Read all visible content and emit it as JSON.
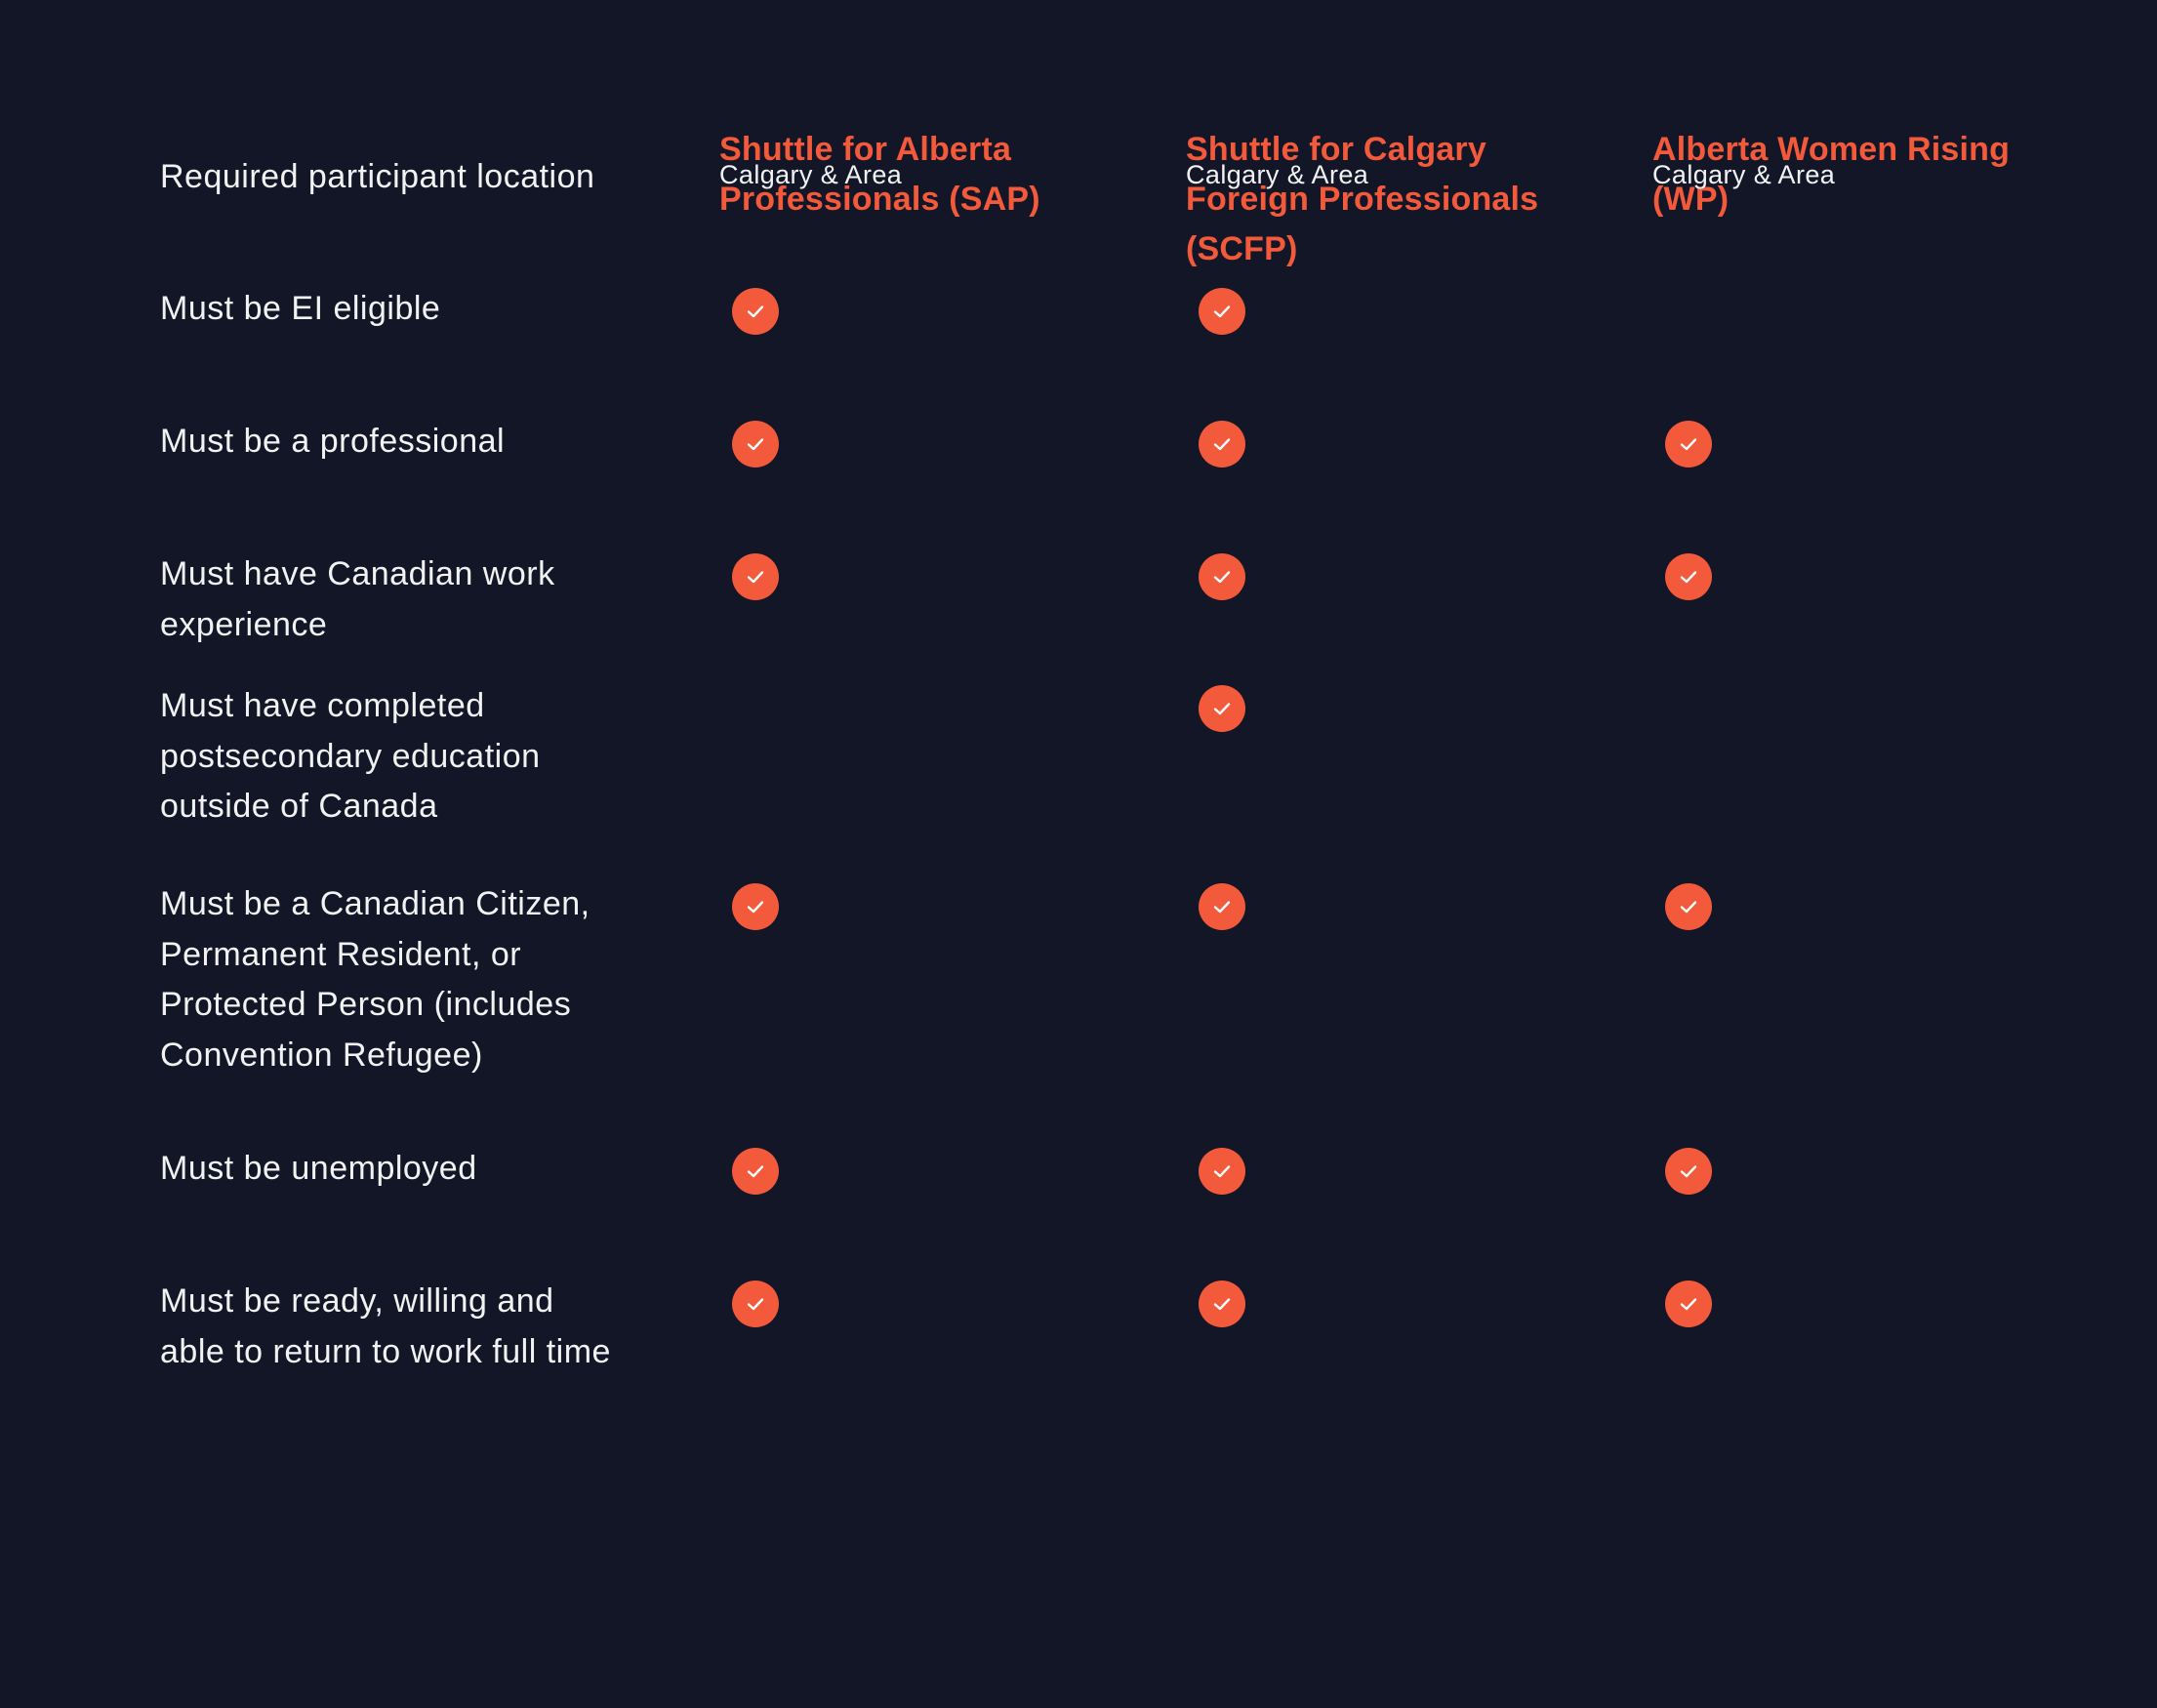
{
  "colors": {
    "background": "#121627",
    "accent": "#f25a3b",
    "text": "#f2f2f2"
  },
  "columns": [
    {
      "title": "Shuttle for Alberta Professionals (SAP)"
    },
    {
      "title": "Shuttle for Calgary Foreign Professionals (SCFP)"
    },
    {
      "title": "Alberta Women Rising (WP)"
    }
  ],
  "rows": [
    {
      "label": "Required participant location",
      "cells": [
        {
          "text": "Calgary & Area"
        },
        {
          "text": "Calgary & Area"
        },
        {
          "text": "Calgary & Area"
        }
      ]
    },
    {
      "label": "Must be EI eligible",
      "cells": [
        {
          "check": true
        },
        {
          "check": true
        },
        {
          "check": false
        }
      ]
    },
    {
      "label": "Must be a professional",
      "cells": [
        {
          "check": true
        },
        {
          "check": true
        },
        {
          "check": true
        }
      ]
    },
    {
      "label": "Must have Canadian work experience",
      "cells": [
        {
          "check": true
        },
        {
          "check": true
        },
        {
          "check": true
        }
      ]
    },
    {
      "label": "Must have completed postsecondary education outside of Canada",
      "cells": [
        {
          "check": false
        },
        {
          "check": true
        },
        {
          "check": false
        }
      ]
    },
    {
      "label": "Must be a Canadian Citizen, Permanent Resident, or Protected Person (includes Convention Refugee)",
      "cells": [
        {
          "check": true
        },
        {
          "check": true
        },
        {
          "check": true
        }
      ]
    },
    {
      "label": "Must be unemployed",
      "cells": [
        {
          "check": true
        },
        {
          "check": true
        },
        {
          "check": true
        }
      ]
    },
    {
      "label": "Must be ready, willing and able to return to work full time",
      "cells": [
        {
          "check": true
        },
        {
          "check": true
        },
        {
          "check": true
        }
      ]
    }
  ]
}
